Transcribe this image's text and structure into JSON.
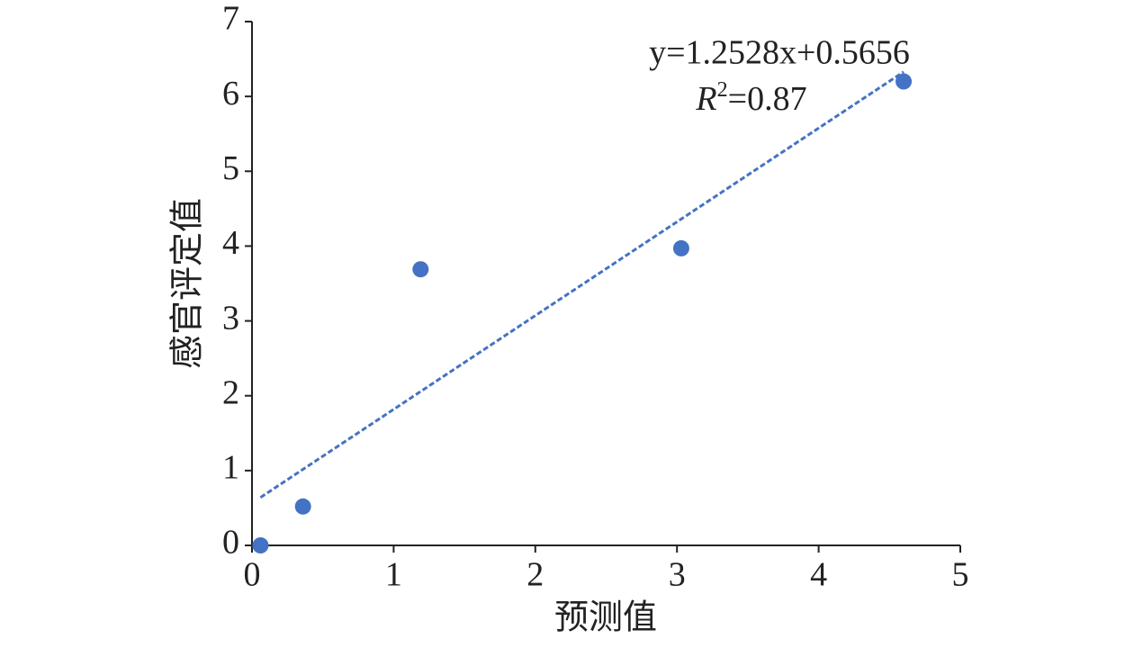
{
  "chart_data": {
    "type": "scatter",
    "x": [
      0.06,
      0.36,
      1.19,
      3.03,
      4.6
    ],
    "values": [
      0,
      0.52,
      3.69,
      3.97,
      6.2
    ],
    "color": "#4472c4",
    "xlabel": "预测值",
    "ylabel": "感官评定值",
    "xlim": [
      0,
      5
    ],
    "xticks": [
      0,
      1,
      2,
      3,
      4,
      5
    ],
    "ylim": [
      0,
      7
    ],
    "yticks": [
      0,
      1,
      2,
      3,
      4,
      5,
      6,
      7
    ],
    "grid": false,
    "trendline": {
      "slope": 1.2528,
      "intercept": 0.5656,
      "equation": "y=1.2528x+0.5656",
      "r2_symbol": "R",
      "r2_exponent": "2",
      "r2_text": "=0.87"
    }
  }
}
